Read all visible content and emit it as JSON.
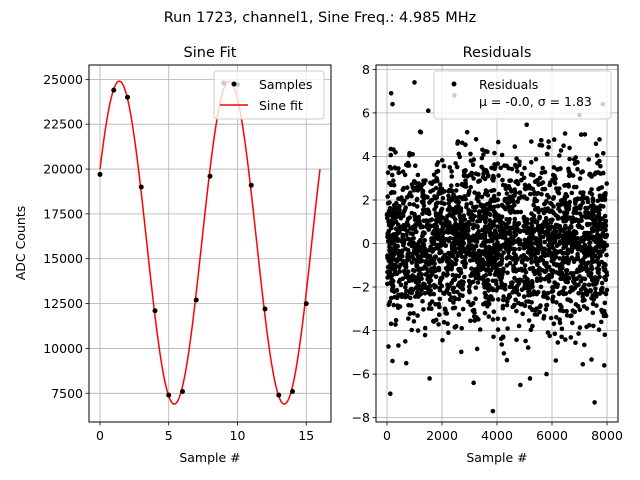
{
  "suptitle": "Run 1723, channel1, Sine Freq.: 4.985 MHz",
  "chart_data": [
    {
      "type": "line",
      "title": "Sine Fit",
      "xlabel": "Sample #",
      "ylabel": "ADC Counts",
      "xlim": [
        -0.8,
        16.8
      ],
      "ylim": [
        5900,
        25800
      ],
      "xticks": [
        0,
        5,
        10,
        15
      ],
      "yticks": [
        7500,
        10000,
        12500,
        15000,
        17500,
        20000,
        22500,
        25000
      ],
      "xtick_labels": [
        "0",
        "5",
        "10",
        "15"
      ],
      "ytick_labels": [
        "7500",
        "10000",
        "12500",
        "15000",
        "17500",
        "20000",
        "22500",
        "25000"
      ],
      "grid": true,
      "legend": {
        "position": "top-right",
        "entries": [
          {
            "label": "Samples",
            "kind": "marker",
            "color": "#000000"
          },
          {
            "label": "Sine fit",
            "kind": "line",
            "color": "#ff0000"
          }
        ]
      },
      "series": [
        {
          "name": "Samples",
          "kind": "scatter",
          "color": "#000000",
          "x": [
            0,
            1,
            2,
            3,
            4,
            5,
            6,
            7,
            8,
            9,
            10,
            11,
            12,
            13,
            14,
            15
          ],
          "y": [
            19700,
            24400,
            24000,
            19000,
            12100,
            7400,
            7600,
            12700,
            19600,
            24800,
            24700,
            19100,
            12200,
            7400,
            7600,
            12500
          ]
        },
        {
          "name": "Sine fit",
          "kind": "line",
          "color": "#ff0000",
          "model": {
            "offset": 15900,
            "amplitude": 9000,
            "period_samples": 8.0,
            "peak_at_sample": 1.4,
            "x_start": 0,
            "x_end": 16
          }
        }
      ]
    },
    {
      "type": "scatter",
      "title": "Residuals",
      "xlabel": "Sample #",
      "ylabel": "",
      "xlim": [
        -400,
        8400
      ],
      "ylim": [
        -8.2,
        8.2
      ],
      "xticks": [
        0,
        2000,
        4000,
        6000,
        8000
      ],
      "yticks": [
        -8,
        -6,
        -4,
        -2,
        0,
        2,
        4,
        6,
        8
      ],
      "xtick_labels": [
        "0",
        "2000",
        "4000",
        "6000",
        "8000"
      ],
      "ytick_labels": [
        "−8",
        "−6",
        "−4",
        "−2",
        "0",
        "2",
        "4",
        "6",
        "8"
      ],
      "grid": true,
      "legend": {
        "position": "top-right",
        "entries": [
          {
            "label": "Residuals",
            "kind": "marker",
            "color": "#000000"
          }
        ],
        "stats_text": "μ = -0.0, σ = 1.83"
      },
      "stats": {
        "mean": -0.0,
        "sigma": 1.83,
        "n_points": 8000
      },
      "outliers": [
        {
          "x": 150,
          "y": 6.9
        },
        {
          "x": 1000,
          "y": 7.4
        },
        {
          "x": 1500,
          "y": 6.1
        },
        {
          "x": 2450,
          "y": 6.8
        },
        {
          "x": 7000,
          "y": 5.9
        },
        {
          "x": 7850,
          "y": 6.4
        },
        {
          "x": 120,
          "y": -6.9
        },
        {
          "x": 1550,
          "y": -6.2
        },
        {
          "x": 3150,
          "y": -6.4
        },
        {
          "x": 3850,
          "y": -7.7
        },
        {
          "x": 4850,
          "y": -6.5
        },
        {
          "x": 5200,
          "y": -6.2
        },
        {
          "x": 5800,
          "y": -6.0
        },
        {
          "x": 7550,
          "y": -7.3
        },
        {
          "x": 700,
          "y": -5.5
        },
        {
          "x": 200,
          "y": -5.4
        },
        {
          "x": 7900,
          "y": -5.6
        },
        {
          "x": 200,
          "y": 6.4
        }
      ]
    }
  ]
}
